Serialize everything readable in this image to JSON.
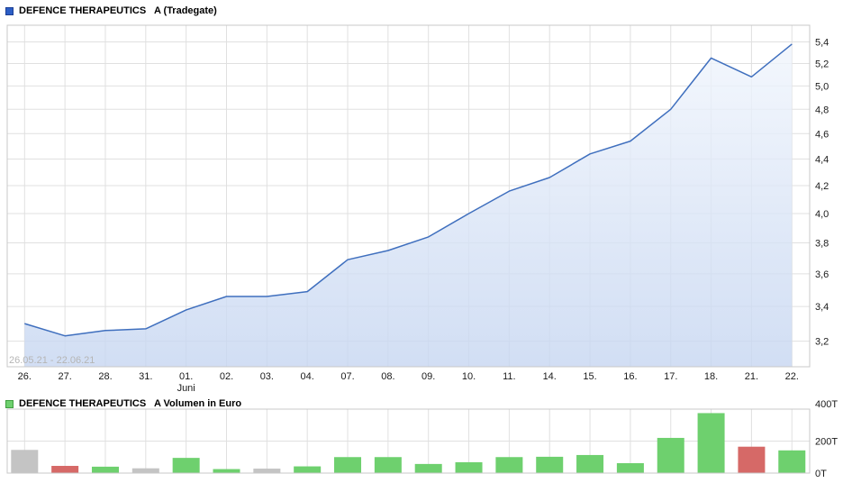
{
  "price_pane": {
    "title": "DEFENCE THERAPEUTICS   A (Tradegate)",
    "watermark": "26.05.21 - 22.06.21",
    "swatch_fill": "#2b5ec6",
    "swatch_border": "#1d3f94"
  },
  "volume_pane": {
    "title": "DEFENCE THERAPEUTICS   A Volumen in Euro",
    "swatch_fill": "#6ed06e",
    "swatch_border": "#3f9e3f"
  },
  "theme": {
    "background": "#ffffff",
    "grid": "#e0e0e0",
    "border": "#c8c8c8",
    "axis_text": "#1a1a1a",
    "watermark_text": "#b5b5b5"
  },
  "chart_data": [
    {
      "type": "area",
      "title": "DEFENCE THERAPEUTICS A (Tradegate)",
      "x_categories": [
        "26.",
        "27.",
        "28.",
        "31.",
        "01.",
        "02.",
        "03.",
        "04.",
        "07.",
        "08.",
        "09.",
        "10.",
        "11.",
        "14.",
        "15.",
        "16.",
        "17.",
        "18.",
        "21.",
        "22."
      ],
      "month_label": "Juni",
      "month_label_index": 4,
      "values": [
        3.3,
        3.23,
        3.26,
        3.27,
        3.38,
        3.46,
        3.46,
        3.49,
        3.69,
        3.75,
        3.84,
        4.0,
        4.16,
        4.26,
        4.44,
        4.54,
        4.8,
        5.25,
        5.08,
        5.38
      ],
      "y_ticks": [
        5.4,
        5.2,
        5.0,
        4.8,
        4.6,
        4.4,
        4.2,
        4.0,
        3.8,
        3.6,
        3.4,
        3.2
      ],
      "y_tick_labels": [
        "5,4",
        "5,2",
        "5,0",
        "4,8",
        "4,6",
        "4,4",
        "4,2",
        "4,0",
        "3,8",
        "3,6",
        "3,4",
        "3,2"
      ],
      "y_scale": "log",
      "ylim": [
        3.06,
        5.56
      ],
      "grid": true,
      "legend_position": "top-left",
      "annotation": "26.05.21 - 22.06.21",
      "line_color": "#3f6fbe",
      "fill_top": "#f3f7fd",
      "fill_bottom": "#c6d6f1"
    },
    {
      "type": "bar",
      "title": "DEFENCE THERAPEUTICS A Volumen in Euro",
      "x_categories": [
        "26.",
        "27.",
        "28.",
        "31.",
        "01.",
        "02.",
        "03.",
        "04.",
        "07.",
        "08.",
        "09.",
        "10.",
        "11.",
        "14.",
        "15.",
        "16.",
        "17.",
        "18.",
        "21.",
        "22."
      ],
      "unit": "T (thousand Euro)",
      "values": [
        145,
        45,
        40,
        30,
        95,
        25,
        28,
        42,
        100,
        100,
        57,
        68,
        100,
        102,
        113,
        62,
        220,
        375,
        165,
        142
      ],
      "bar_colors": [
        "gray",
        "red",
        "green",
        "gray",
        "green",
        "green",
        "gray",
        "green",
        "green",
        "green",
        "green",
        "green",
        "green",
        "green",
        "green",
        "green",
        "green",
        "green",
        "red",
        "green"
      ],
      "color_map": {
        "green": "#6ed06e",
        "red": "#d66967",
        "gray": "#c4c4c4"
      },
      "y_ticks": [
        400,
        200,
        0
      ],
      "y_tick_labels": [
        "400T",
        "200T",
        "0T"
      ],
      "ylim": [
        0,
        400
      ],
      "grid": true
    }
  ]
}
